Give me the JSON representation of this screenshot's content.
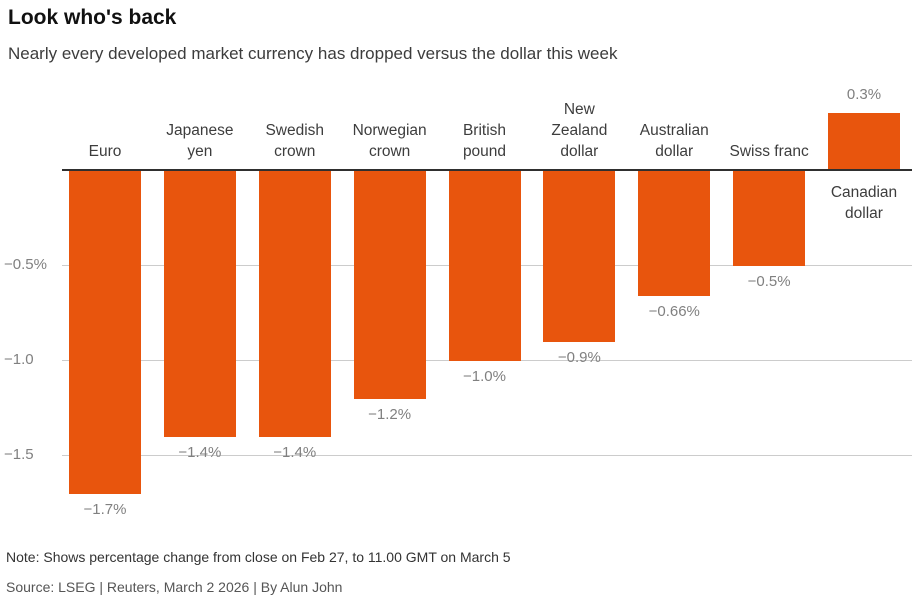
{
  "header": {
    "title": "Look who's back",
    "subtitle": "Nearly every developed market currency has dropped versus the dollar this week"
  },
  "chart_data": {
    "type": "bar",
    "categories": [
      "Euro",
      "Japanese yen",
      "Swedish crown",
      "Norwegian crown",
      "British pound",
      "New Zealand dollar",
      "Australian dollar",
      "Swiss franc",
      "Canadian dollar"
    ],
    "category_lines": [
      [
        "Euro"
      ],
      [
        "Japanese",
        "yen"
      ],
      [
        "Swedish",
        "crown"
      ],
      [
        "Norwegian",
        "crown"
      ],
      [
        "British",
        "pound"
      ],
      [
        "New",
        "Zealand",
        "dollar"
      ],
      [
        "Australian",
        "dollar"
      ],
      [
        "Swiss franc"
      ],
      [
        "Canadian",
        "dollar"
      ]
    ],
    "values": [
      -1.7,
      -1.4,
      -1.4,
      -1.2,
      -1.0,
      -0.9,
      -0.66,
      -0.5,
      0.3
    ],
    "value_labels": [
      "−1.7%",
      "−1.4%",
      "−1.4%",
      "−1.2%",
      "−1.0%",
      "−0.9%",
      "−0.66%",
      "−0.5%",
      "0.3%"
    ],
    "unit": "%",
    "y_axis": {
      "ticks": [
        -0.5,
        -1.0,
        -1.5
      ],
      "tick_labels": [
        "−0.5%",
        "−1.0",
        "−1.5"
      ]
    },
    "ylim": [
      -1.85,
      0.45
    ],
    "grid": true,
    "legend": "none",
    "bar_color": "#e8550d",
    "gridline_color": "#cccccc",
    "zero_line_color": "#2f2f2f",
    "label_color": "#808080"
  },
  "footer": {
    "note": "Note: Shows percentage change from close on Feb 27, to 11.00 GMT on March 5",
    "source": "Source: LSEG | Reuters, March 2 2026 | By Alun John"
  }
}
